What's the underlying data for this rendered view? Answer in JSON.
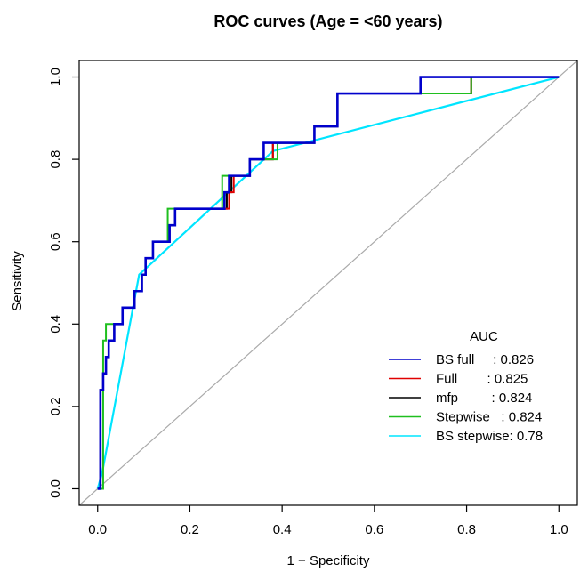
{
  "chart_data": {
    "type": "line",
    "title": "ROC curves (Age = <60 years)",
    "xlabel": "1 − Specificity",
    "ylabel": "Sensitivity",
    "xlim": [
      -0.04,
      1.04
    ],
    "ylim": [
      -0.04,
      1.04
    ],
    "x_ticks": [
      "0.0",
      "0.2",
      "0.4",
      "0.6",
      "0.8",
      "1.0"
    ],
    "y_ticks": [
      "0.0",
      "0.2",
      "0.4",
      "0.6",
      "0.8",
      "1.0"
    ],
    "x_tick_values": [
      0,
      0.2,
      0.4,
      0.6,
      0.8,
      1.0
    ],
    "y_tick_values": [
      0,
      0.2,
      0.4,
      0.6,
      0.8,
      1.0
    ],
    "grid": false,
    "legend_position": "bottom-right",
    "legend_title": "AUC",
    "reference_line": {
      "x": [
        0,
        1
      ],
      "y": [
        0,
        1
      ],
      "color": "#aaaaaa"
    },
    "series": [
      {
        "name": "BS stepwise",
        "label": "BS stepwise: 0.78",
        "color": "#00e5ff",
        "x": [
          0,
          0.01,
          0.09,
          0.38,
          1.0
        ],
        "y": [
          0,
          0.04,
          0.52,
          0.82,
          1.0
        ]
      },
      {
        "name": "mfp",
        "label": "mfp         : 0.824",
        "color": "#000000",
        "x": [
          0,
          0.006,
          0.006,
          0.012,
          0.012,
          0.018,
          0.018,
          0.024,
          0.024,
          0.036,
          0.036,
          0.054,
          0.054,
          0.08,
          0.08,
          0.096,
          0.096,
          0.104,
          0.104,
          0.12,
          0.12,
          0.156,
          0.156,
          0.168,
          0.168,
          0.28,
          0.28,
          0.29,
          0.29,
          0.33,
          0.33,
          0.36,
          0.36,
          0.38,
          0.38,
          0.45,
          0.45,
          0.47,
          0.47,
          0.52,
          0.52,
          0.77,
          0.77,
          0.81,
          0.81,
          1.0
        ],
        "y": [
          0,
          0,
          0.24,
          0.24,
          0.28,
          0.28,
          0.32,
          0.32,
          0.36,
          0.36,
          0.4,
          0.4,
          0.44,
          0.44,
          0.48,
          0.48,
          0.52,
          0.52,
          0.56,
          0.56,
          0.6,
          0.6,
          0.64,
          0.64,
          0.68,
          0.68,
          0.72,
          0.72,
          0.76,
          0.76,
          0.8,
          0.8,
          0.8,
          0.8,
          0.84,
          0.84,
          0.84,
          0.84,
          0.88,
          0.88,
          0.96,
          0.96,
          0.96,
          0.96,
          1.0,
          1.0
        ]
      },
      {
        "name": "Full",
        "label": "Full        : 0.825",
        "color": "#e00000",
        "x": [
          0,
          0.006,
          0.006,
          0.012,
          0.012,
          0.018,
          0.018,
          0.024,
          0.024,
          0.036,
          0.036,
          0.054,
          0.054,
          0.08,
          0.08,
          0.096,
          0.096,
          0.104,
          0.104,
          0.12,
          0.12,
          0.156,
          0.156,
          0.168,
          0.168,
          0.285,
          0.285,
          0.295,
          0.295,
          0.33,
          0.33,
          0.36,
          0.36,
          0.38,
          0.38,
          0.45,
          0.45,
          0.47,
          0.47,
          0.52,
          0.52,
          0.7,
          0.7,
          0.81,
          0.81,
          1.0
        ],
        "y": [
          0,
          0,
          0.24,
          0.24,
          0.28,
          0.28,
          0.32,
          0.32,
          0.36,
          0.36,
          0.4,
          0.4,
          0.44,
          0.44,
          0.48,
          0.48,
          0.52,
          0.52,
          0.56,
          0.56,
          0.6,
          0.6,
          0.64,
          0.64,
          0.68,
          0.68,
          0.72,
          0.72,
          0.76,
          0.76,
          0.8,
          0.8,
          0.8,
          0.8,
          0.84,
          0.84,
          0.84,
          0.84,
          0.88,
          0.88,
          0.96,
          0.96,
          0.96,
          0.96,
          1.0,
          1.0
        ]
      },
      {
        "name": "Stepwise",
        "label": "Stepwise   : 0.824",
        "color": "#1fbf1f",
        "x": [
          0,
          0.012,
          0.012,
          0.018,
          0.018,
          0.024,
          0.024,
          0.054,
          0.054,
          0.08,
          0.08,
          0.096,
          0.096,
          0.104,
          0.104,
          0.12,
          0.12,
          0.152,
          0.152,
          0.27,
          0.27,
          0.33,
          0.33,
          0.37,
          0.37,
          0.39,
          0.39,
          0.45,
          0.45,
          0.47,
          0.47,
          0.52,
          0.52,
          0.77,
          0.77,
          0.81,
          0.81,
          1.0
        ],
        "y": [
          0,
          0,
          0.36,
          0.36,
          0.4,
          0.4,
          0.4,
          0.4,
          0.44,
          0.44,
          0.48,
          0.48,
          0.52,
          0.52,
          0.56,
          0.56,
          0.6,
          0.6,
          0.68,
          0.68,
          0.76,
          0.76,
          0.8,
          0.8,
          0.8,
          0.8,
          0.84,
          0.84,
          0.84,
          0.84,
          0.88,
          0.88,
          0.96,
          0.96,
          0.96,
          0.96,
          1.0,
          1.0
        ]
      },
      {
        "name": "BS full",
        "label": "BS full     : 0.826",
        "color": "#0000cc",
        "x": [
          0,
          0.006,
          0.006,
          0.012,
          0.012,
          0.018,
          0.018,
          0.024,
          0.024,
          0.036,
          0.036,
          0.054,
          0.054,
          0.08,
          0.08,
          0.096,
          0.096,
          0.104,
          0.104,
          0.12,
          0.12,
          0.156,
          0.156,
          0.168,
          0.168,
          0.275,
          0.275,
          0.285,
          0.285,
          0.33,
          0.33,
          0.36,
          0.36,
          0.38,
          0.38,
          0.45,
          0.45,
          0.47,
          0.47,
          0.52,
          0.52,
          0.7,
          0.7,
          0.81,
          0.81,
          1.0
        ],
        "y": [
          0,
          0,
          0.24,
          0.24,
          0.28,
          0.28,
          0.32,
          0.32,
          0.36,
          0.36,
          0.4,
          0.4,
          0.44,
          0.44,
          0.48,
          0.48,
          0.52,
          0.52,
          0.56,
          0.56,
          0.6,
          0.6,
          0.64,
          0.64,
          0.68,
          0.68,
          0.72,
          0.72,
          0.76,
          0.76,
          0.8,
          0.8,
          0.84,
          0.84,
          0.84,
          0.84,
          0.84,
          0.84,
          0.88,
          0.88,
          0.96,
          0.96,
          1.0,
          1.0,
          1.0,
          1.0
        ]
      }
    ],
    "legend_order": [
      "BS full",
      "Full",
      "mfp",
      "Stepwise",
      "BS stepwise"
    ]
  }
}
